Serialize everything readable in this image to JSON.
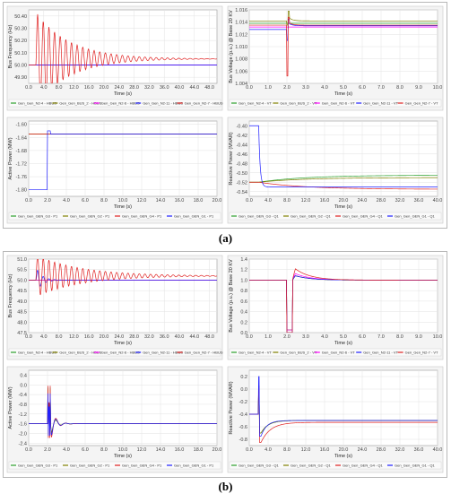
{
  "captions": {
    "a": "(a)",
    "b": "(b)"
  },
  "chart_data": [
    {
      "id": "a1",
      "panel": "a",
      "type": "line",
      "xlabel": "Time (s)",
      "ylabel": "Bus Frequency (Hz)",
      "xlim": [
        0,
        50
      ],
      "xticks": [
        "0.0",
        "4.0",
        "8.0",
        "12.0",
        "16.0",
        "20.0",
        "24.0",
        "28.0",
        "32.0",
        "36.0",
        "40.0",
        "44.0",
        "48.0"
      ],
      "ylim": [
        49.85,
        50.45
      ],
      "yticks": [
        "49.90",
        "50.00",
        "50.10",
        "50.20",
        "50.30",
        "50.40"
      ],
      "grid": true,
      "legend": "bottom",
      "series": [
        {
          "name": "Gen_Gen_N2-4 - HBUS",
          "color": "#2ca02c",
          "kind": "flat",
          "y0": 50.0,
          "y1": 50.0
        },
        {
          "name": "Gen_Gen_BUS_2 - HBUS",
          "color": "#808000",
          "kind": "flat",
          "y0": 50.0,
          "y1": 50.0
        },
        {
          "name": "Gen_Gen_N2-6 - HBUS",
          "color": "#ff00ff",
          "kind": "flat",
          "y0": 50.0,
          "y1": 50.0
        },
        {
          "name": "Gen_Gen_N2-11 - HBUS",
          "color": "#1f1fff",
          "kind": "step",
          "t0": 1.5,
          "y0": 50.0,
          "y1": 50.0
        },
        {
          "name": "Gen_Gen_N2-7 - HBUS",
          "color": "#e02020",
          "kind": "osc",
          "t0": 2.0,
          "y0": 50.0,
          "y1": 50.05,
          "amp": 0.38,
          "period": 1.5,
          "tau": 9
        }
      ]
    },
    {
      "id": "a2",
      "panel": "a",
      "type": "line",
      "xlabel": "Time (s)",
      "ylabel": "Bus Voltage (p.u.) @ Base 20 KV",
      "xlim": [
        0,
        10
      ],
      "xticks": [
        "0.0",
        "1.0",
        "2.0",
        "3.0",
        "4.0",
        "5.0",
        "6.0",
        "7.0",
        "8.0",
        "9.0",
        "10.0"
      ],
      "ylim": [
        1.004,
        1.016
      ],
      "yticks": [
        "1.004",
        "1.006",
        "1.008",
        "1.010",
        "1.012",
        "1.014",
        "1.016"
      ],
      "grid": true,
      "legend": "bottom",
      "series": [
        {
          "name": "Gen_Gen_N2-4 - VT",
          "color": "#2ca02c",
          "kind": "flat",
          "y0": 1.0138,
          "y1": 1.0138
        },
        {
          "name": "Gen_Gen_BUS_2 - VT",
          "color": "#808000",
          "kind": "spike",
          "t0": 2.0,
          "y0": 1.0142,
          "y1": 1.0142,
          "peak": 1.0158,
          "dip": 1.0135
        },
        {
          "name": "Gen_Gen_N2-6 - VT",
          "color": "#ff00ff",
          "kind": "flat",
          "y0": 1.0132,
          "y1": 1.0132
        },
        {
          "name": "Gen_Gen_N2-11 - VT",
          "color": "#1f1fff",
          "kind": "spike",
          "t0": 2.0,
          "y0": 1.0128,
          "y1": 1.0134,
          "peak": 1.0145,
          "dip": 1.011
        },
        {
          "name": "Gen_Gen_N2-7 - VT",
          "color": "#e02020",
          "kind": "spike",
          "t0": 2.0,
          "y0": 1.0135,
          "y1": 1.0135,
          "peak": 1.0148,
          "dip": 1.0052
        }
      ]
    },
    {
      "id": "a3",
      "panel": "a",
      "type": "line",
      "xlabel": "Time (s)",
      "ylabel": "Active Power (MW)",
      "xlim": [
        0,
        20
      ],
      "xticks": [
        "0.0",
        "2.0",
        "4.0",
        "6.0",
        "8.0",
        "10.0",
        "12.0",
        "14.0",
        "16.0",
        "18.0",
        "20.0"
      ],
      "ylim": [
        -1.82,
        -1.59
      ],
      "yticks": [
        "-1.80",
        "-1.76",
        "-1.72",
        "-1.68",
        "-1.64",
        "-1.60"
      ],
      "grid": true,
      "legend": "bottom",
      "series": [
        {
          "name": "Gen_Gen_GEN_G3 - P1",
          "color": "#2ca02c",
          "kind": "flat",
          "y0": -1.63,
          "y1": -1.63
        },
        {
          "name": "Gen_Gen_GEN_G2 - P1",
          "color": "#808000",
          "kind": "flat",
          "y0": -1.63,
          "y1": -1.63
        },
        {
          "name": "Gen_Gen_GEN_G4 - P1",
          "color": "#e02020",
          "kind": "flat",
          "y0": -1.63,
          "y1": -1.63
        },
        {
          "name": "Gen_Gen_GEN_G1 - P1",
          "color": "#1f1fff",
          "kind": "step",
          "t0": 2.0,
          "y0": -1.8,
          "y1": -1.63,
          "peak": -1.62
        }
      ]
    },
    {
      "id": "a4",
      "panel": "a",
      "type": "line",
      "xlabel": "Time (s)",
      "ylabel": "Reactive Power (MVAR)",
      "xlim": [
        0,
        40
      ],
      "xticks": [
        "0.0",
        "4.0",
        "8.0",
        "12.0",
        "16.0",
        "20.0",
        "24.0",
        "28.0",
        "32.0",
        "36.0",
        "40.0"
      ],
      "ylim": [
        -0.55,
        -0.39
      ],
      "yticks": [
        "-0.54",
        "-0.52",
        "-0.50",
        "-0.48",
        "-0.46",
        "-0.44",
        "-0.42",
        "-0.40"
      ],
      "grid": true,
      "legend": "bottom",
      "series": [
        {
          "name": "Gen_Gen_GEN_G3 - Q1",
          "color": "#2ca02c",
          "kind": "exp",
          "t0": 2.0,
          "y0": -0.52,
          "y1": -0.505,
          "tau": 10
        },
        {
          "name": "Gen_Gen_GEN_G2 - Q1",
          "color": "#808000",
          "kind": "exp",
          "t0": 2.0,
          "y0": -0.52,
          "y1": -0.51,
          "tau": 10
        },
        {
          "name": "Gen_Gen_GEN_G4 - Q1",
          "color": "#e02020",
          "kind": "exp",
          "t0": 2.0,
          "y0": -0.52,
          "y1": -0.535,
          "tau": 10
        },
        {
          "name": "Gen_Gen_GEN_G1 - Q1",
          "color": "#1f1fff",
          "kind": "exp",
          "t0": 2.0,
          "y0": -0.4,
          "y1": -0.53,
          "tau": 0.3
        }
      ]
    },
    {
      "id": "b1",
      "panel": "b",
      "type": "line",
      "xlabel": "Time (s)",
      "ylabel": "Bus Frequency (Hz)",
      "xlim": [
        0,
        50
      ],
      "xticks": [
        "0.0",
        "4.0",
        "8.0",
        "12.0",
        "16.0",
        "20.0",
        "24.0",
        "28.0",
        "32.0",
        "36.0",
        "40.0",
        "44.0",
        "48.0"
      ],
      "ylim": [
        47.5,
        51.0
      ],
      "yticks": [
        "47.5",
        "48.0",
        "48.5",
        "49.0",
        "49.5",
        "50.0",
        "50.5",
        "51.0"
      ],
      "grid": true,
      "legend": "bottom",
      "series": [
        {
          "name": "Gen_Gen_N2-4 - HBUS",
          "color": "#2ca02c",
          "kind": "flat",
          "y0": 50.0,
          "y1": 50.0
        },
        {
          "name": "Gen_Gen_BUS_2 - HBUS",
          "color": "#808000",
          "kind": "flat",
          "y0": 50.0,
          "y1": 50.0
        },
        {
          "name": "Gen_Gen_N2-6 - HBUS",
          "color": "#ff00ff",
          "kind": "flat",
          "y0": 50.0,
          "y1": 50.0
        },
        {
          "name": "Gen_Gen_N2-11 - HBUS",
          "color": "#1f1fff",
          "kind": "osc",
          "t0": 2.0,
          "y0": 50.0,
          "y1": 50.0,
          "amp": 0.6,
          "period": 1.5,
          "tau": 1.5
        },
        {
          "name": "Gen_Gen_N2-7 - HBUS",
          "color": "#e02020",
          "kind": "osc",
          "t0": 2.0,
          "y0": 50.0,
          "y1": 50.2,
          "amp": 1.0,
          "period": 1.5,
          "tau": 12
        }
      ]
    },
    {
      "id": "b2",
      "panel": "b",
      "type": "line",
      "xlabel": "Time (s)",
      "ylabel": "Bus Voltage (p.u.) @ Base 20 KV",
      "xlim": [
        0,
        10
      ],
      "xticks": [
        "0.0",
        "1.0",
        "2.0",
        "3.0",
        "4.0",
        "5.0",
        "6.0",
        "7.0",
        "8.0",
        "9.0",
        "10.0"
      ],
      "ylim": [
        0.0,
        1.4
      ],
      "yticks": [
        "0.0",
        "0.2",
        "0.4",
        "0.6",
        "0.8",
        "1.0",
        "1.2",
        "1.4"
      ],
      "grid": true,
      "legend": "bottom",
      "series": [
        {
          "name": "Gen_Gen_N2-4 - VT",
          "color": "#2ca02c",
          "kind": "sag",
          "t0": 2.0,
          "t1": 2.3,
          "y0": 1.0,
          "y1": 1.0,
          "low": 0.05,
          "peak": 1.1
        },
        {
          "name": "Gen_Gen_BUS_2 - VT",
          "color": "#808000",
          "kind": "sag",
          "t0": 2.0,
          "t1": 2.3,
          "y0": 1.0,
          "y1": 1.0,
          "low": 0.05,
          "peak": 1.1
        },
        {
          "name": "Gen_Gen_N2-6 - VT",
          "color": "#ff00ff",
          "kind": "sag",
          "t0": 2.0,
          "t1": 2.3,
          "y0": 1.0,
          "y1": 1.0,
          "low": 0.05,
          "peak": 1.15
        },
        {
          "name": "Gen_Gen_N2-11 - VT",
          "color": "#1f1fff",
          "kind": "sag",
          "t0": 2.0,
          "t1": 2.3,
          "y0": 1.0,
          "y1": 1.0,
          "low": 0.0,
          "peak": 1.1
        },
        {
          "name": "Gen_Gen_N2-7 - VT",
          "color": "#e02020",
          "kind": "sag",
          "t0": 2.0,
          "t1": 2.3,
          "y0": 1.0,
          "y1": 1.0,
          "low": 0.0,
          "peak": 1.26
        }
      ]
    },
    {
      "id": "b3",
      "panel": "b",
      "type": "line",
      "xlabel": "Time (s)",
      "ylabel": "Active Power (MW)",
      "xlim": [
        0,
        20
      ],
      "xticks": [
        "0.0",
        "2.0",
        "4.0",
        "6.0",
        "8.0",
        "10.0",
        "12.0",
        "14.0",
        "16.0",
        "18.0",
        "20.0"
      ],
      "ylim": [
        -2.5,
        0.6
      ],
      "yticks": [
        "-2.4",
        "-2.0",
        "-1.6",
        "-1.2",
        "-0.8",
        "-0.4",
        "0.0",
        "0.4"
      ],
      "grid": true,
      "legend": "bottom",
      "series": [
        {
          "name": "Gen_Gen_GEN_G3 - P1",
          "color": "#2ca02c",
          "kind": "burst",
          "t0": 2.0,
          "t1": 2.4,
          "y0": -1.6,
          "y1": -1.6,
          "hi": 0.3,
          "lo": -2.0
        },
        {
          "name": "Gen_Gen_GEN_G2 - P1",
          "color": "#808000",
          "kind": "burst",
          "t0": 2.0,
          "t1": 2.4,
          "y0": -1.6,
          "y1": -1.6,
          "hi": 0.2,
          "lo": -2.0
        },
        {
          "name": "Gen_Gen_GEN_G4 - P1",
          "color": "#e02020",
          "kind": "burst",
          "t0": 2.0,
          "t1": 2.4,
          "y0": -1.6,
          "y1": -1.6,
          "hi": 0.4,
          "lo": -2.2
        },
        {
          "name": "Gen_Gen_GEN_G1 - P1",
          "color": "#1f1fff",
          "kind": "burst",
          "t0": 2.0,
          "t1": 2.4,
          "y0": -1.6,
          "y1": -1.6,
          "hi": 0.0,
          "lo": -2.1
        }
      ]
    },
    {
      "id": "b4",
      "panel": "b",
      "type": "line",
      "xlabel": "Time (s)",
      "ylabel": "Reactive Power (MVAR)",
      "xlim": [
        0,
        40
      ],
      "xticks": [
        "0.0",
        "4.0",
        "8.0",
        "12.0",
        "16.0",
        "20.0",
        "24.0",
        "28.0",
        "32.0",
        "36.0",
        "40.0"
      ],
      "ylim": [
        -0.9,
        0.3
      ],
      "yticks": [
        "-0.8",
        "-0.6",
        "-0.4",
        "-0.2",
        "0.0",
        "0.2"
      ],
      "grid": true,
      "legend": "bottom",
      "series": [
        {
          "name": "Gen_Gen_GEN_G3 - Q1",
          "color": "#2ca02c",
          "kind": "kick",
          "t0": 2.0,
          "y0": -0.4,
          "y1": -0.5,
          "hi": 0.0,
          "lo": -0.7,
          "tau": 1.5
        },
        {
          "name": "Gen_Gen_GEN_G2 - Q1",
          "color": "#808000",
          "kind": "kick",
          "t0": 2.0,
          "y0": -0.4,
          "y1": -0.5,
          "hi": 0.0,
          "lo": -0.7,
          "tau": 1.5
        },
        {
          "name": "Gen_Gen_GEN_G4 - Q1",
          "color": "#e02020",
          "kind": "kick",
          "t0": 2.0,
          "y0": -0.4,
          "y1": -0.53,
          "hi": 0.05,
          "lo": -0.85,
          "tau": 2.0
        },
        {
          "name": "Gen_Gen_GEN_G1 - Q1",
          "color": "#1f1fff",
          "kind": "kick",
          "t0": 2.0,
          "y0": -0.4,
          "y1": -0.5,
          "hi": 0.2,
          "lo": -0.75,
          "tau": 1.2
        }
      ]
    }
  ]
}
